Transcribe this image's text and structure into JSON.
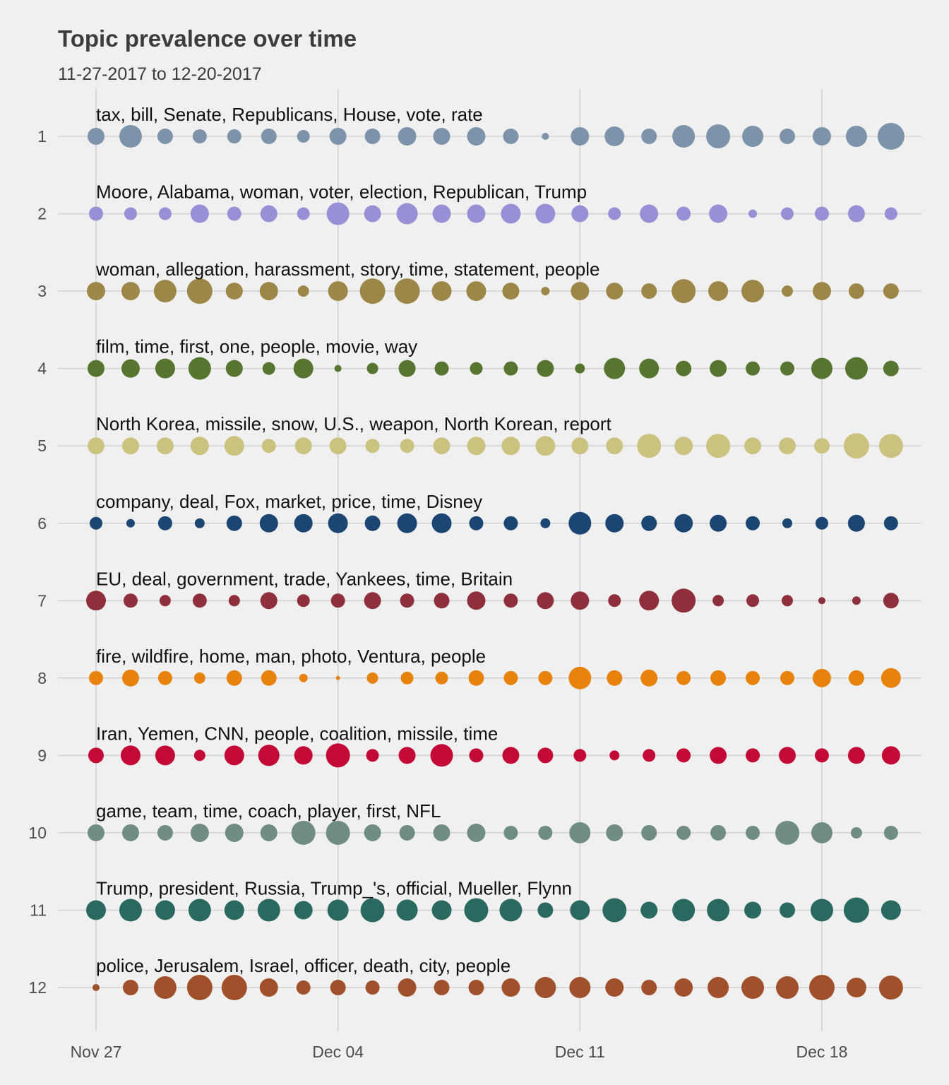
{
  "chart_data": {
    "type": "scatter",
    "title": "Topic prevalence over time",
    "subtitle": "11-27-2017 to 12-20-2017",
    "xlabel": "",
    "ylabel": "",
    "dates": [
      "2017-11-27",
      "2017-11-28",
      "2017-11-29",
      "2017-11-30",
      "2017-12-01",
      "2017-12-02",
      "2017-12-03",
      "2017-12-04",
      "2017-12-05",
      "2017-12-06",
      "2017-12-07",
      "2017-12-08",
      "2017-12-09",
      "2017-12-10",
      "2017-12-11",
      "2017-12-12",
      "2017-12-13",
      "2017-12-14",
      "2017-12-15",
      "2017-12-16",
      "2017-12-17",
      "2017-12-18",
      "2017-12-19",
      "2017-12-20"
    ],
    "x_ticks": [
      "Nov 27",
      "Dec 04",
      "Dec 11",
      "Dec 18"
    ],
    "y_ticks": [
      "1",
      "2",
      "3",
      "4",
      "5",
      "6",
      "7",
      "8",
      "9",
      "10",
      "11",
      "12"
    ],
    "grid": true,
    "legend": "none",
    "size_meaning": "relative topic prevalence (point size)",
    "series": [
      {
        "topic": "1",
        "label": "tax, bill, Senate, Republicans, House, vote, rate",
        "color": "#7c93aa",
        "values": [
          12,
          16,
          11,
          10,
          10,
          11,
          9,
          12,
          11,
          13,
          12,
          13,
          11,
          5,
          13,
          14,
          11,
          16,
          17,
          15,
          11,
          13,
          15,
          19
        ]
      },
      {
        "topic": "2",
        "label": "Moore, Alabama, woman, voter, election, Republican, Trump",
        "color": "#9790d6",
        "values": [
          10,
          9,
          9,
          13,
          10,
          12,
          9,
          16,
          12,
          15,
          13,
          13,
          14,
          14,
          12,
          9,
          13,
          10,
          13,
          6,
          9,
          10,
          12,
          9
        ]
      },
      {
        "topic": "3",
        "label": "woman, allegation, harassment, story, time, statement, people",
        "color": "#9c8748",
        "values": [
          13,
          13,
          16,
          18,
          12,
          13,
          8,
          14,
          18,
          18,
          14,
          14,
          12,
          6,
          13,
          12,
          11,
          17,
          14,
          16,
          8,
          13,
          11,
          11
        ]
      },
      {
        "topic": "4",
        "label": "film, time, first, one, people, movie, way",
        "color": "#56752f",
        "values": [
          12,
          13,
          14,
          16,
          12,
          9,
          14,
          5,
          8,
          12,
          10,
          9,
          10,
          12,
          7,
          15,
          14,
          11,
          12,
          10,
          10,
          15,
          16,
          11
        ]
      },
      {
        "topic": "5",
        "label": "North Korea, missile, snow, U.S., weapon, North Korean, report",
        "color": "#cbc27f",
        "values": [
          12,
          12,
          12,
          13,
          14,
          10,
          12,
          12,
          10,
          10,
          12,
          13,
          13,
          14,
          12,
          12,
          17,
          13,
          17,
          12,
          12,
          11,
          18,
          17
        ]
      },
      {
        "topic": "6",
        "label": "company, deal, Fox, market, price, time, Disney",
        "color": "#1b4573",
        "values": [
          9,
          6,
          10,
          7,
          11,
          13,
          13,
          14,
          11,
          14,
          14,
          10,
          10,
          7,
          16,
          13,
          11,
          13,
          12,
          10,
          7,
          9,
          12,
          10
        ]
      },
      {
        "topic": "7",
        "label": "EU, deal, government, trade, Yankees, time, Britain",
        "color": "#8f2f3b",
        "values": [
          14,
          10,
          8,
          10,
          8,
          12,
          9,
          10,
          12,
          10,
          11,
          13,
          10,
          12,
          13,
          9,
          14,
          17,
          8,
          9,
          8,
          5,
          6,
          11
        ]
      },
      {
        "topic": "8",
        "label": "fire, wildfire, home, man, photo, Ventura, people",
        "color": "#e7830c",
        "values": [
          10,
          12,
          10,
          8,
          11,
          11,
          6,
          3,
          8,
          9,
          9,
          11,
          10,
          10,
          16,
          11,
          12,
          10,
          11,
          10,
          10,
          13,
          11,
          14
        ]
      },
      {
        "topic": "9",
        "label": "Iran, Yemen, CNN, people, coalition, missile, time",
        "color": "#c30a37",
        "values": [
          11,
          14,
          14,
          8,
          14,
          15,
          13,
          17,
          9,
          12,
          16,
          10,
          12,
          11,
          9,
          7,
          9,
          10,
          12,
          10,
          12,
          10,
          12,
          13
        ]
      },
      {
        "topic": "10",
        "label": "game, team, time, coach, player, first, NFL",
        "color": "#6f8d82",
        "values": [
          12,
          12,
          11,
          13,
          13,
          12,
          17,
          17,
          12,
          11,
          12,
          13,
          10,
          10,
          15,
          12,
          11,
          10,
          11,
          10,
          17,
          15,
          8,
          10
        ]
      },
      {
        "topic": "11",
        "label": "Trump, president, Russia, Trump_'s, official, Mueller, Flynn",
        "color": "#2a695f",
        "values": [
          14,
          16,
          14,
          16,
          14,
          16,
          13,
          15,
          17,
          15,
          14,
          17,
          16,
          11,
          14,
          17,
          12,
          16,
          16,
          12,
          11,
          16,
          18,
          14
        ]
      },
      {
        "topic": "12",
        "label": "police, Jerusalem, Israel, officer, death, city, people",
        "color": "#a0502b",
        "values": [
          5,
          11,
          16,
          18,
          18,
          13,
          10,
          11,
          10,
          13,
          11,
          11,
          13,
          15,
          15,
          13,
          11,
          13,
          15,
          16,
          16,
          18,
          14,
          17
        ]
      }
    ]
  }
}
